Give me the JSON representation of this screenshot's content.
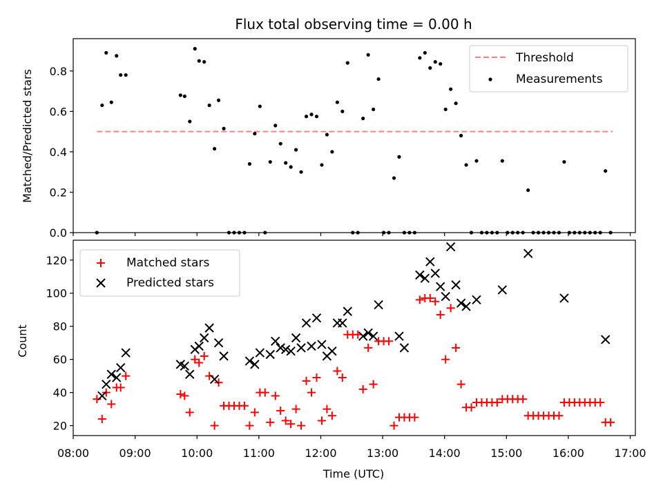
{
  "chart_data": [
    {
      "type": "scatter",
      "title": "Flux total observing time = 0.00 h",
      "xlabel": "",
      "ylabel": "Matched/Predicted stars",
      "xlim": [
        "08:00",
        "17:05"
      ],
      "ylim": [
        0,
        0.96
      ],
      "yticks": [
        "0.0",
        "0.2",
        "0.4",
        "0.6",
        "0.8"
      ],
      "ytick_values": [
        0,
        0.2,
        0.4,
        0.6,
        0.8
      ],
      "legend_position": "top-right",
      "threshold": {
        "name": "Threshold",
        "value": 0.5,
        "x_start": "08:23",
        "x_end": "16:43",
        "color": "#ff8080",
        "style": "dashed"
      },
      "series": [
        {
          "name": "Measurements",
          "marker": "dot",
          "color": "#000000",
          "points": [
            [
              "08:23",
              0.0
            ],
            [
              "08:28",
              0.63
            ],
            [
              "08:32",
              0.89
            ],
            [
              "08:37",
              0.645
            ],
            [
              "08:42",
              0.875
            ],
            [
              "08:46",
              0.78
            ],
            [
              "08:51",
              0.78
            ],
            [
              "09:44",
              0.68
            ],
            [
              "09:48",
              0.675
            ],
            [
              "09:53",
              0.55
            ],
            [
              "09:58",
              0.91
            ],
            [
              "10:02",
              0.85
            ],
            [
              "10:07",
              0.845
            ],
            [
              "10:12",
              0.63
            ],
            [
              "10:17",
              0.415
            ],
            [
              "10:21",
              0.655
            ],
            [
              "10:26",
              0.515
            ],
            [
              "10:31",
              0.0
            ],
            [
              "10:36",
              0.0
            ],
            [
              "10:41",
              0.0
            ],
            [
              "10:46",
              0.0
            ],
            [
              "10:51",
              0.34
            ],
            [
              "10:56",
              0.49
            ],
            [
              "11:01",
              0.625
            ],
            [
              "11:06",
              0.0
            ],
            [
              "11:11",
              0.35
            ],
            [
              "11:16",
              0.53
            ],
            [
              "11:21",
              0.44
            ],
            [
              "11:26",
              0.345
            ],
            [
              "11:31",
              0.325
            ],
            [
              "11:36",
              0.41
            ],
            [
              "11:41",
              0.3
            ],
            [
              "11:46",
              0.575
            ],
            [
              "11:51",
              0.585
            ],
            [
              "11:56",
              0.575
            ],
            [
              "12:01",
              0.335
            ],
            [
              "12:06",
              0.485
            ],
            [
              "12:11",
              0.4
            ],
            [
              "12:16",
              0.645
            ],
            [
              "12:21",
              0.6
            ],
            [
              "12:26",
              0.84
            ],
            [
              "12:31",
              0.0
            ],
            [
              "12:36",
              0.0
            ],
            [
              "12:41",
              0.565
            ],
            [
              "12:46",
              0.88
            ],
            [
              "12:51",
              0.61
            ],
            [
              "12:56",
              0.76
            ],
            [
              "13:01",
              0.0
            ],
            [
              "13:06",
              0.0
            ],
            [
              "13:11",
              0.27
            ],
            [
              "13:16",
              0.375
            ],
            [
              "13:21",
              0.0
            ],
            [
              "13:26",
              0.0
            ],
            [
              "13:31",
              0.0
            ],
            [
              "13:36",
              0.865
            ],
            [
              "13:41",
              0.89
            ],
            [
              "13:46",
              0.815
            ],
            [
              "13:51",
              0.845
            ],
            [
              "13:56",
              0.835
            ],
            [
              "14:01",
              0.61
            ],
            [
              "14:06",
              0.71
            ],
            [
              "14:11",
              0.64
            ],
            [
              "14:16",
              0.48
            ],
            [
              "14:21",
              0.335
            ],
            [
              "14:26",
              0.0
            ],
            [
              "14:31",
              0.355
            ],
            [
              "14:36",
              0.0
            ],
            [
              "14:41",
              0.0
            ],
            [
              "14:46",
              0.0
            ],
            [
              "14:51",
              0.0
            ],
            [
              "14:56",
              0.355
            ],
            [
              "15:01",
              0.0
            ],
            [
              "15:06",
              0.0
            ],
            [
              "15:11",
              0.0
            ],
            [
              "15:16",
              0.0
            ],
            [
              "15:21",
              0.21
            ],
            [
              "15:26",
              0.0
            ],
            [
              "15:31",
              0.0
            ],
            [
              "15:36",
              0.0
            ],
            [
              "15:41",
              0.0
            ],
            [
              "15:46",
              0.0
            ],
            [
              "15:51",
              0.0
            ],
            [
              "15:56",
              0.35
            ],
            [
              "16:01",
              0.0
            ],
            [
              "16:06",
              0.0
            ],
            [
              "16:11",
              0.0
            ],
            [
              "16:16",
              0.0
            ],
            [
              "16:21",
              0.0
            ],
            [
              "16:26",
              0.0
            ],
            [
              "16:31",
              0.0
            ],
            [
              "16:36",
              0.305
            ],
            [
              "16:41",
              0.0
            ]
          ]
        }
      ]
    },
    {
      "type": "scatter",
      "title": "",
      "xlabel": "Time (UTC)",
      "ylabel": "Count",
      "xlim": [
        "08:00",
        "17:05"
      ],
      "xticks": [
        "08:00",
        "09:00",
        "10:00",
        "11:00",
        "12:00",
        "13:00",
        "14:00",
        "15:00",
        "16:00",
        "17:00"
      ],
      "ylim": [
        14,
        132
      ],
      "yticks": [
        "20",
        "40",
        "60",
        "80",
        "100",
        "120"
      ],
      "ytick_values": [
        20,
        40,
        60,
        80,
        100,
        120
      ],
      "legend_position": "top-left",
      "series": [
        {
          "name": "Matched stars",
          "marker": "plus",
          "color": "#ff0000",
          "points": [
            [
              "08:23",
              36
            ],
            [
              "08:28",
              24
            ],
            [
              "08:32",
              40
            ],
            [
              "08:37",
              33
            ],
            [
              "08:42",
              43
            ],
            [
              "08:46",
              43
            ],
            [
              "08:51",
              50
            ],
            [
              "09:44",
              39
            ],
            [
              "09:48",
              38
            ],
            [
              "09:53",
              28
            ],
            [
              "09:58",
              60
            ],
            [
              "10:02",
              58
            ],
            [
              "10:07",
              62
            ],
            [
              "10:12",
              50
            ],
            [
              "10:17",
              20
            ],
            [
              "10:21",
              46
            ],
            [
              "10:26",
              32
            ],
            [
              "10:31",
              32
            ],
            [
              "10:36",
              32
            ],
            [
              "10:41",
              32
            ],
            [
              "10:46",
              32
            ],
            [
              "10:51",
              20
            ],
            [
              "10:56",
              28
            ],
            [
              "11:01",
              40
            ],
            [
              "11:06",
              40
            ],
            [
              "11:11",
              22
            ],
            [
              "11:16",
              38
            ],
            [
              "11:21",
              29
            ],
            [
              "11:26",
              23
            ],
            [
              "11:31",
              21
            ],
            [
              "11:36",
              30
            ],
            [
              "11:41",
              20
            ],
            [
              "11:46",
              47
            ],
            [
              "11:51",
              40
            ],
            [
              "11:56",
              49
            ],
            [
              "12:01",
              23
            ],
            [
              "12:06",
              30
            ],
            [
              "12:11",
              26
            ],
            [
              "12:16",
              53
            ],
            [
              "12:21",
              49
            ],
            [
              "12:26",
              75
            ],
            [
              "12:31",
              75
            ],
            [
              "12:36",
              75
            ],
            [
              "12:41",
              42
            ],
            [
              "12:46",
              67
            ],
            [
              "12:51",
              45
            ],
            [
              "12:56",
              71
            ],
            [
              "13:01",
              71
            ],
            [
              "13:06",
              71
            ],
            [
              "13:11",
              20
            ],
            [
              "13:16",
              25
            ],
            [
              "13:21",
              25
            ],
            [
              "13:26",
              25
            ],
            [
              "13:31",
              25
            ],
            [
              "13:36",
              96
            ],
            [
              "13:41",
              97
            ],
            [
              "13:46",
              97
            ],
            [
              "13:51",
              95
            ],
            [
              "13:56",
              87
            ],
            [
              "14:01",
              60
            ],
            [
              "14:06",
              91
            ],
            [
              "14:11",
              67
            ],
            [
              "14:16",
              45
            ],
            [
              "14:21",
              31
            ],
            [
              "14:26",
              31
            ],
            [
              "14:31",
              34
            ],
            [
              "14:36",
              34
            ],
            [
              "14:41",
              34
            ],
            [
              "14:46",
              34
            ],
            [
              "14:51",
              34
            ],
            [
              "14:56",
              36
            ],
            [
              "15:01",
              36
            ],
            [
              "15:06",
              36
            ],
            [
              "15:11",
              36
            ],
            [
              "15:16",
              36
            ],
            [
              "15:21",
              26
            ],
            [
              "15:26",
              26
            ],
            [
              "15:31",
              26
            ],
            [
              "15:36",
              26
            ],
            [
              "15:41",
              26
            ],
            [
              "15:46",
              26
            ],
            [
              "15:51",
              26
            ],
            [
              "15:56",
              34
            ],
            [
              "16:01",
              34
            ],
            [
              "16:06",
              34
            ],
            [
              "16:11",
              34
            ],
            [
              "16:16",
              34
            ],
            [
              "16:21",
              34
            ],
            [
              "16:26",
              34
            ],
            [
              "16:31",
              34
            ],
            [
              "16:36",
              22
            ],
            [
              "16:41",
              22
            ]
          ]
        },
        {
          "name": "Predicted stars",
          "marker": "x",
          "color": "#000000",
          "points": [
            [
              "08:28",
              38
            ],
            [
              "08:32",
              45
            ],
            [
              "08:37",
              51
            ],
            [
              "08:42",
              49
            ],
            [
              "08:46",
              55
            ],
            [
              "08:51",
              64
            ],
            [
              "09:44",
              57
            ],
            [
              "09:48",
              56
            ],
            [
              "09:53",
              51
            ],
            [
              "09:58",
              66
            ],
            [
              "10:02",
              68
            ],
            [
              "10:07",
              73
            ],
            [
              "10:12",
              79
            ],
            [
              "10:17",
              48
            ],
            [
              "10:21",
              70
            ],
            [
              "10:26",
              62
            ],
            [
              "10:51",
              59
            ],
            [
              "10:56",
              57
            ],
            [
              "11:01",
              64
            ],
            [
              "11:11",
              63
            ],
            [
              "11:16",
              71
            ],
            [
              "11:21",
              67
            ],
            [
              "11:26",
              66
            ],
            [
              "11:31",
              65
            ],
            [
              "11:36",
              73
            ],
            [
              "11:41",
              67
            ],
            [
              "11:46",
              82
            ],
            [
              "11:51",
              68
            ],
            [
              "11:56",
              85
            ],
            [
              "12:01",
              69
            ],
            [
              "12:06",
              62
            ],
            [
              "12:11",
              65
            ],
            [
              "12:16",
              82
            ],
            [
              "12:21",
              82
            ],
            [
              "12:26",
              89
            ],
            [
              "12:41",
              74
            ],
            [
              "12:46",
              76
            ],
            [
              "12:51",
              74
            ],
            [
              "12:56",
              93
            ],
            [
              "13:16",
              74
            ],
            [
              "13:21",
              67
            ],
            [
              "13:36",
              111
            ],
            [
              "13:41",
              109
            ],
            [
              "13:46",
              119
            ],
            [
              "13:51",
              112
            ],
            [
              "13:56",
              104
            ],
            [
              "14:01",
              98
            ],
            [
              "14:06",
              128
            ],
            [
              "14:11",
              105
            ],
            [
              "14:16",
              94
            ],
            [
              "14:21",
              92
            ],
            [
              "14:31",
              96
            ],
            [
              "14:56",
              102
            ],
            [
              "15:21",
              124
            ],
            [
              "15:56",
              97
            ],
            [
              "16:36",
              72
            ]
          ]
        }
      ]
    }
  ]
}
